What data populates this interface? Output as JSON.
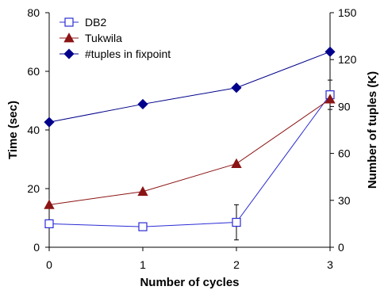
{
  "chart_data": {
    "type": "line",
    "title": "",
    "xlabel": "Number of cycles",
    "ylabel": "Time (sec)",
    "y2label": "Number of tuples (K)",
    "x": [
      0,
      1,
      2,
      3
    ],
    "x_ticks": [
      "0",
      "1",
      "2",
      "3"
    ],
    "xlim": [
      0,
      3
    ],
    "ylim": [
      0,
      80
    ],
    "y_ticks": [
      "0",
      "20",
      "40",
      "60",
      "80"
    ],
    "y2lim": [
      0,
      150
    ],
    "y2_ticks": [
      "0",
      "30",
      "60",
      "90",
      "120",
      "150"
    ],
    "grid": false,
    "legend_position": "top-left",
    "series": [
      {
        "name": "DB2",
        "axis": "left",
        "marker": "open-square",
        "color": "#2b2bd6",
        "values": [
          8,
          7,
          8.5,
          52
        ],
        "error": [
          null,
          1,
          6,
          5
        ]
      },
      {
        "name": "Tukwila",
        "axis": "left",
        "marker": "triangle",
        "color": "#8b1414",
        "values": [
          14.5,
          19,
          28.5,
          50.5
        ]
      },
      {
        "name": "#tuples in fixpoint",
        "axis": "right",
        "marker": "diamond",
        "color": "#00008b",
        "values": [
          80,
          91.5,
          102,
          125
        ]
      }
    ]
  }
}
